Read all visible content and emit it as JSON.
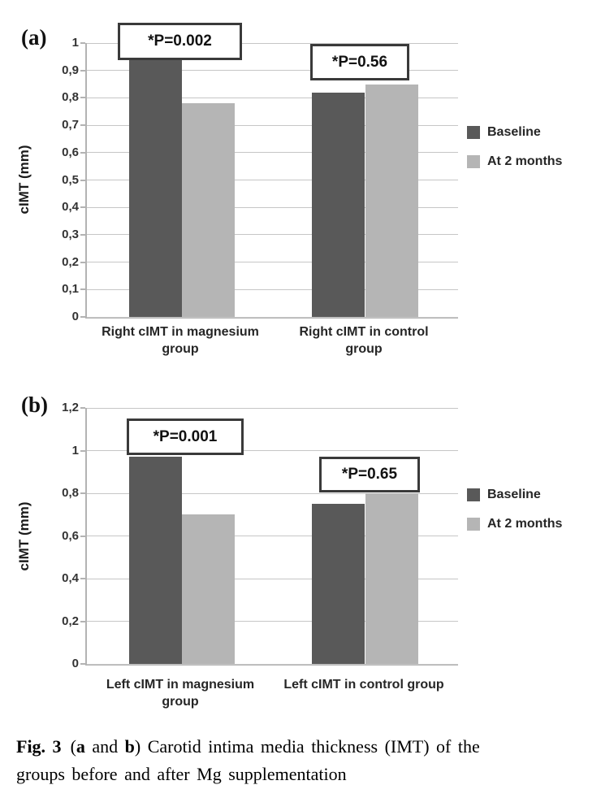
{
  "figure": {
    "panel_a_label": "(a)",
    "panel_b_label": "(b)",
    "caption": {
      "fig_label": "Fig. 3",
      "open_paren": "(",
      "bold_a": "a",
      "and_text": " and ",
      "bold_b": "b",
      "rest_line1": ") Carotid intima media thickness (IMT) of the",
      "line2": "groups before and after Mg supplementation"
    }
  },
  "colors": {
    "baseline": "#595959",
    "at_2_months": "#b5b5b5",
    "gridline": "#c6c6c6",
    "axis": "#b3b3b3",
    "annotation_border": "#3a3a3a",
    "text": "#262626"
  },
  "chart_data": [
    {
      "type": "bar",
      "panel": "a",
      "title": "",
      "xlabel": "",
      "ylabel": "cIMT (mm)",
      "ylim": [
        0,
        1.0
      ],
      "ytick_step": 0.1,
      "ytick_labels": [
        "0",
        "0,1",
        "0,2",
        "0,3",
        "0,4",
        "0,5",
        "0,6",
        "0,7",
        "0,8",
        "0,9",
        "1"
      ],
      "grid": true,
      "legend_position": "right",
      "categories": [
        "Right cIMT in magnesium\ngroup",
        "Right cIMT in control\ngroup"
      ],
      "series": [
        {
          "name": "Baseline",
          "values": [
            0.96,
            0.82
          ]
        },
        {
          "name": "At 2 months",
          "values": [
            0.78,
            0.85
          ]
        }
      ],
      "legend": [
        "Baseline",
        "At 2 months"
      ],
      "annotations": [
        {
          "text": "*P=0.002",
          "group": 0
        },
        {
          "text": "*P=0.56",
          "group": 1
        }
      ]
    },
    {
      "type": "bar",
      "panel": "b",
      "title": "",
      "xlabel": "",
      "ylabel": "cIMT (mm)",
      "ylim": [
        0,
        1.2
      ],
      "ytick_step": 0.2,
      "ytick_labels": [
        "0",
        "0,2",
        "0,4",
        "0,6",
        "0,8",
        "1",
        "1,2"
      ],
      "grid": true,
      "legend_position": "right",
      "categories": [
        "Left cIMT in magnesium\ngroup",
        "Left cIMT in control group"
      ],
      "series": [
        {
          "name": "Baseline",
          "values": [
            0.97,
            0.75
          ]
        },
        {
          "name": "At 2 months",
          "values": [
            0.7,
            0.8
          ]
        }
      ],
      "legend": [
        "Baseline",
        "At 2 months"
      ],
      "annotations": [
        {
          "text": "*P=0.001",
          "group": 0
        },
        {
          "text": "*P=0.65",
          "group": 1
        }
      ]
    }
  ]
}
